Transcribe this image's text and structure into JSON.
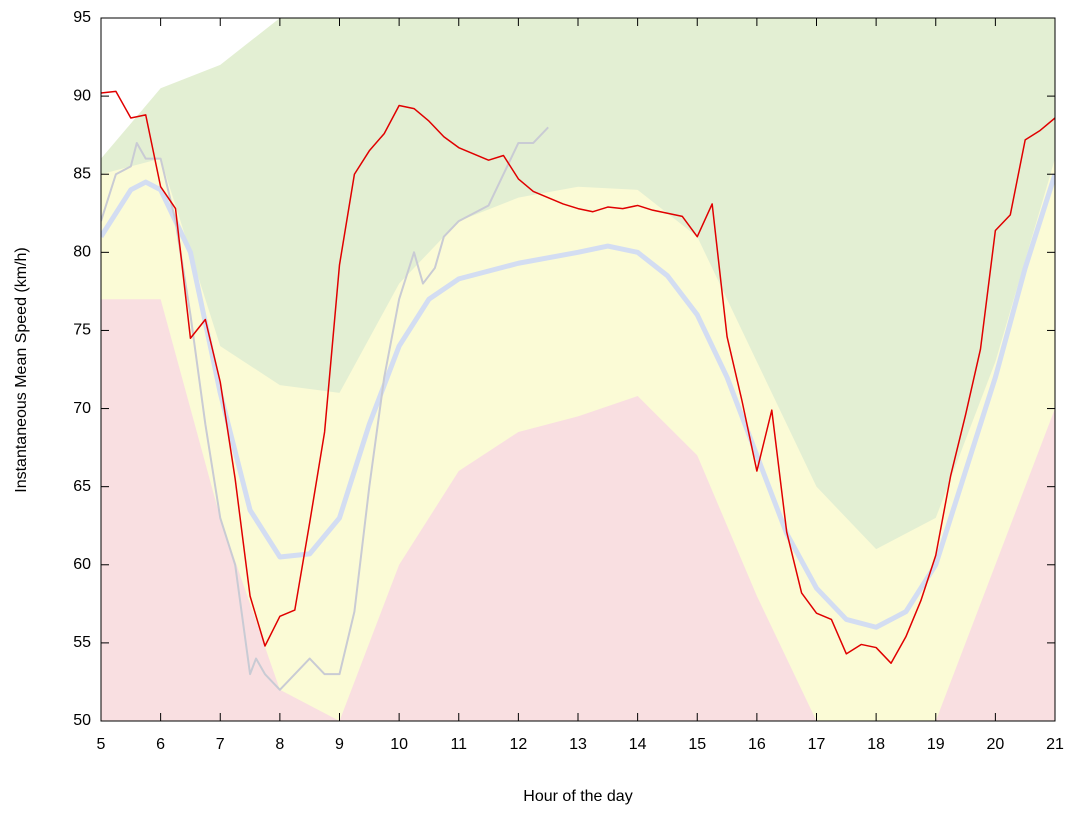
{
  "chart_data": {
    "type": "line",
    "xlabel": "Hour of the day",
    "ylabel": "Instantaneous Mean Speed (km/h)",
    "xlim": [
      5,
      21
    ],
    "ylim": [
      50,
      95
    ],
    "xticks": [
      5,
      6,
      7,
      8,
      9,
      10,
      11,
      12,
      13,
      14,
      15,
      16,
      17,
      18,
      19,
      20,
      21
    ],
    "yticks": [
      50,
      55,
      60,
      65,
      70,
      75,
      80,
      85,
      90,
      95
    ],
    "band_x": [
      5,
      6,
      7,
      8,
      9,
      10,
      11,
      12,
      13,
      14,
      15,
      16,
      17,
      18,
      19,
      20,
      21
    ],
    "bands": [
      {
        "color": "#e3efd3",
        "values": [
          86,
          90.5,
          92,
          95,
          95,
          95,
          95,
          95,
          95,
          95,
          95,
          95,
          95,
          95,
          95,
          95,
          95
        ]
      },
      {
        "color": "#fbfbd6",
        "values": [
          85,
          86,
          74,
          71.5,
          71,
          78,
          82,
          83.5,
          84.2,
          84,
          81,
          73,
          65,
          61,
          63,
          73,
          86
        ]
      },
      {
        "color": "#f9dfe1",
        "values": [
          77,
          77,
          63,
          52,
          50,
          60,
          66,
          68.5,
          69.5,
          70.8,
          67,
          58,
          50,
          44,
          50,
          60,
          70
        ]
      }
    ],
    "series": [
      {
        "color": "#d3ddf2",
        "width": 5,
        "x": [
          5,
          5.5,
          5.75,
          6,
          6.5,
          7,
          7.5,
          8,
          8.5,
          9,
          9.5,
          10,
          10.5,
          11,
          12,
          13,
          13.5,
          14,
          14.5,
          15,
          15.5,
          16,
          16.5,
          17,
          17.5,
          18,
          18.5,
          19,
          19.5,
          20,
          20.5,
          21
        ],
        "values": [
          81,
          84,
          84.5,
          84,
          80,
          71,
          63.5,
          60.5,
          60.7,
          63,
          69,
          74,
          77,
          78.3,
          79.3,
          80,
          80.4,
          80,
          78.5,
          76,
          72,
          67,
          62,
          58.5,
          56.5,
          56,
          57,
          60,
          66,
          72,
          79,
          85
        ]
      },
      {
        "color": "#c9cbd4",
        "width": 2,
        "x": [
          5,
          5.25,
          5.5,
          5.6,
          5.75,
          6,
          6.25,
          6.5,
          6.75,
          7,
          7.25,
          7.5,
          7.6,
          7.75,
          8,
          8.25,
          8.5,
          8.75,
          9,
          9.25,
          9.5,
          9.75,
          10,
          10.25,
          10.4,
          10.6,
          10.75,
          11,
          11.5,
          11.75,
          12,
          12.25,
          12.5
        ],
        "values": [
          82,
          85,
          85.5,
          87,
          86,
          86,
          82,
          76,
          69,
          63,
          60,
          53,
          54,
          53,
          52,
          53,
          54,
          53,
          53,
          57,
          65,
          72,
          77,
          80,
          78,
          79,
          81,
          82,
          83,
          85,
          87,
          87,
          88
        ]
      },
      {
        "color": "#e00000",
        "width": 1.5,
        "x": [
          5,
          5.25,
          5.5,
          5.75,
          6,
          6.25,
          6.5,
          6.75,
          7,
          7.25,
          7.5,
          7.75,
          8,
          8.25,
          8.5,
          8.75,
          9,
          9.25,
          9.5,
          9.75,
          10,
          10.25,
          10.5,
          10.75,
          11,
          11.25,
          11.5,
          11.75,
          12,
          12.25,
          12.5,
          12.75,
          13,
          13.25,
          13.5,
          13.75,
          14,
          14.25,
          14.5,
          14.75,
          15,
          15.25,
          15.5,
          15.75,
          16,
          16.25,
          16.5,
          16.75,
          17,
          17.25,
          17.5,
          17.75,
          18,
          18.25,
          18.5,
          18.75,
          19,
          19.25,
          19.5,
          19.75,
          20,
          20.25,
          20.5,
          20.75,
          21
        ],
        "values": [
          90.2,
          90.3,
          88.6,
          88.8,
          84.2,
          82.8,
          74.5,
          75.7,
          71.7,
          65.5,
          58.0,
          54.8,
          56.7,
          57.1,
          62.7,
          68.5,
          79.2,
          85.0,
          86.5,
          87.6,
          89.4,
          89.2,
          88.4,
          87.4,
          86.7,
          86.3,
          85.9,
          86.2,
          84.7,
          83.9,
          83.5,
          83.1,
          82.8,
          82.6,
          82.9,
          82.8,
          83.0,
          82.7,
          82.5,
          82.3,
          81.0,
          83.1,
          74.6,
          70.5,
          66.0,
          69.9,
          62.1,
          58.2,
          56.9,
          56.5,
          54.3,
          54.9,
          54.7,
          53.7,
          55.4,
          57.7,
          60.6,
          65.7,
          69.6,
          73.8,
          81.4,
          82.4,
          87.2,
          87.8,
          88.6
        ]
      }
    ]
  }
}
